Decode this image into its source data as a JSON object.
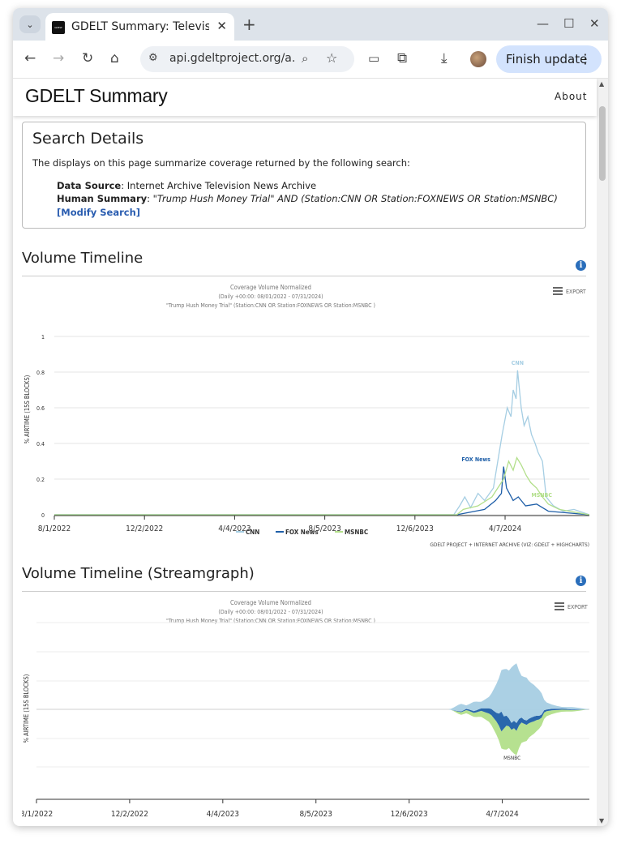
{
  "browser": {
    "tab_title": "GDELT Summary: Televis",
    "favicon_text": "GDELT",
    "url": "api.gdeltproject.org/a...",
    "update_button": "Finish update"
  },
  "header": {
    "title": "GDELT Summary",
    "about": "About"
  },
  "search_details": {
    "title": "Search Details",
    "description": "The displays on this page summarize coverage returned by the following search:",
    "data_source_label": "Data Source",
    "data_source_value": ": Internet Archive Television News Archive",
    "human_summary_label": "Human Summary",
    "human_summary_value": "\"Trump Hush Money Trial\" AND (Station:CNN OR Station:FOXNEWS OR Station:MSNBC)",
    "modify_link": "[Modify Search]"
  },
  "sections": {
    "volume_timeline": "Volume Timeline",
    "streamgraph": "Volume Timeline (Streamgraph)"
  },
  "chart_common": {
    "title": "Coverage Volume Normalized",
    "subtitle1": "(Daily +00:00: 08/01/2022 - 07/31/2024)",
    "subtitle2": "\"Trump Hush Money Trial\" (Station:CNN OR Station:FOXNEWS OR Station:MSNBC )",
    "export": "EXPORT",
    "ylabel": "% AIRTIME (15S BLOCKS)",
    "credits": "GDELT PROJECT + INTERNET ARCHIVE (VIZ: GDELT + HIGHCHARTS)"
  },
  "chart_data": [
    {
      "type": "line",
      "title": "Coverage Volume Normalized",
      "ylabel": "% AIRTIME (15S BLOCKS)",
      "ylim": [
        0,
        1
      ],
      "yticks": [
        "0",
        "0.2",
        "0.4",
        "0.6",
        "0.8",
        "1"
      ],
      "xticks": [
        "8/1/2022",
        "12/2/2022",
        "4/4/2023",
        "8/5/2023",
        "12/6/2023",
        "4/7/2024"
      ],
      "x_range": [
        "2022-08-01",
        "2024-07-31"
      ],
      "legend_position": "bottom-center",
      "series": [
        {
          "name": "CNN",
          "color": "#a6cee3",
          "points": [
            [
              "2022-08-01",
              0
            ],
            [
              "2024-01-28",
              0
            ],
            [
              "2024-02-05",
              0.05
            ],
            [
              "2024-02-12",
              0.1
            ],
            [
              "2024-02-20",
              0.04
            ],
            [
              "2024-03-01",
              0.12
            ],
            [
              "2024-03-10",
              0.08
            ],
            [
              "2024-03-22",
              0.15
            ],
            [
              "2024-03-28",
              0.3
            ],
            [
              "2024-04-03",
              0.45
            ],
            [
              "2024-04-10",
              0.6
            ],
            [
              "2024-04-15",
              0.55
            ],
            [
              "2024-04-18",
              0.7
            ],
            [
              "2024-04-22",
              0.65
            ],
            [
              "2024-04-24",
              0.81
            ],
            [
              "2024-04-29",
              0.6
            ],
            [
              "2024-05-03",
              0.5
            ],
            [
              "2024-05-08",
              0.55
            ],
            [
              "2024-05-13",
              0.45
            ],
            [
              "2024-05-18",
              0.4
            ],
            [
              "2024-05-22",
              0.35
            ],
            [
              "2024-05-28",
              0.3
            ],
            [
              "2024-06-02",
              0.1
            ],
            [
              "2024-06-12",
              0.05
            ],
            [
              "2024-06-25",
              0.02
            ],
            [
              "2024-07-10",
              0.03
            ],
            [
              "2024-07-31",
              0
            ]
          ]
        },
        {
          "name": "FOX News",
          "color": "#1f5fa8",
          "points": [
            [
              "2022-08-01",
              0
            ],
            [
              "2024-02-01",
              0
            ],
            [
              "2024-03-10",
              0.03
            ],
            [
              "2024-03-25",
              0.08
            ],
            [
              "2024-04-02",
              0.12
            ],
            [
              "2024-04-05",
              0.27
            ],
            [
              "2024-04-09",
              0.15
            ],
            [
              "2024-04-18",
              0.08
            ],
            [
              "2024-04-25",
              0.1
            ],
            [
              "2024-05-05",
              0.05
            ],
            [
              "2024-05-20",
              0.06
            ],
            [
              "2024-06-05",
              0.02
            ],
            [
              "2024-07-31",
              0
            ]
          ]
        },
        {
          "name": "MSNBC",
          "color": "#b2df8a",
          "points": [
            [
              "2022-08-01",
              0
            ],
            [
              "2024-02-01",
              0
            ],
            [
              "2024-02-10",
              0.03
            ],
            [
              "2024-03-01",
              0.05
            ],
            [
              "2024-03-20",
              0.1
            ],
            [
              "2024-04-05",
              0.2
            ],
            [
              "2024-04-12",
              0.3
            ],
            [
              "2024-04-18",
              0.25
            ],
            [
              "2024-04-23",
              0.32
            ],
            [
              "2024-04-29",
              0.28
            ],
            [
              "2024-05-06",
              0.22
            ],
            [
              "2024-05-12",
              0.18
            ],
            [
              "2024-05-20",
              0.15
            ],
            [
              "2024-05-28",
              0.1
            ],
            [
              "2024-06-05",
              0.06
            ],
            [
              "2024-06-20",
              0.03
            ],
            [
              "2024-07-31",
              0
            ]
          ]
        }
      ],
      "annotations": [
        "CNN",
        "FOX News",
        "MSNBC"
      ]
    },
    {
      "type": "area",
      "title": "Coverage Volume Normalized",
      "ylabel": "% AIRTIME (15S BLOCKS)",
      "xticks": [
        "8/1/2022",
        "12/2/2022",
        "4/4/2023",
        "8/5/2023",
        "12/6/2023",
        "4/7/2024"
      ],
      "x_range": [
        "2022-08-01",
        "2024-07-31"
      ],
      "streamgraph": true,
      "series": [
        {
          "name": "CNN",
          "color": "#a6cee3"
        },
        {
          "name": "FOX News",
          "color": "#1f5fa8"
        },
        {
          "name": "MSNBC",
          "color": "#b2df8a"
        }
      ],
      "annotations": [
        "MSNBC"
      ]
    }
  ]
}
